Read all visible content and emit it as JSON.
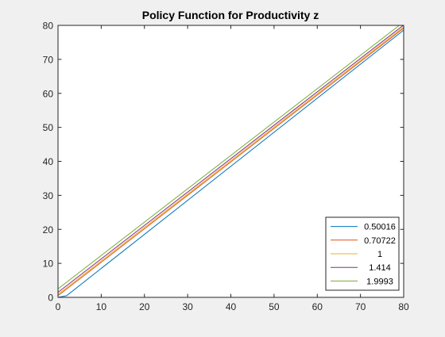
{
  "chart_data": {
    "type": "line",
    "title": "Policy Function for Productivity z",
    "xlabel": "",
    "ylabel": "",
    "xlim": [
      0,
      80
    ],
    "ylim": [
      0,
      80
    ],
    "xticks": [
      0,
      10,
      20,
      30,
      40,
      50,
      60,
      70,
      80
    ],
    "yticks": [
      0,
      10,
      20,
      30,
      40,
      50,
      60,
      70,
      80
    ],
    "grid": false,
    "legend_position": "bottom-right",
    "series": [
      {
        "name": "0.50016",
        "color": "#0072BD",
        "x": [
          0,
          2,
          80
        ],
        "y": [
          0,
          0.5,
          78.6
        ]
      },
      {
        "name": "0.70722",
        "color": "#D95319",
        "x": [
          0,
          80
        ],
        "y": [
          0.5,
          79.2
        ]
      },
      {
        "name": "1",
        "color": "#EDB120",
        "x": [
          0,
          80
        ],
        "y": [
          0.9,
          79.6
        ]
      },
      {
        "name": "1.414",
        "color": "#7E2F8E",
        "x": [
          0,
          80
        ],
        "y": [
          1.5,
          80.1
        ]
      },
      {
        "name": "1.9993",
        "color": "#77AC30",
        "x": [
          0,
          80
        ],
        "y": [
          2.5,
          81.0
        ]
      }
    ]
  }
}
